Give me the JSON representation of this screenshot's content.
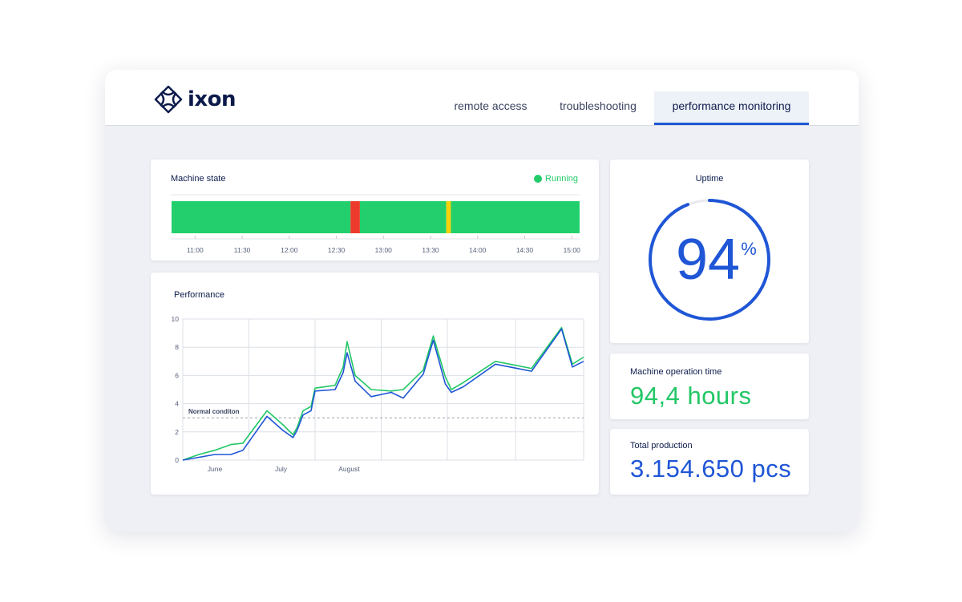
{
  "brand": {
    "name": "ixon"
  },
  "tabs": [
    {
      "label": "remote access",
      "active": false
    },
    {
      "label": "troubleshooting",
      "active": false
    },
    {
      "label": "performance monitoring",
      "active": true
    }
  ],
  "machine_state": {
    "title": "Machine state",
    "status": "Running",
    "colors": {
      "running": "#22cf6c",
      "stopped": "#ee3a2c",
      "warning": "#f5d20b"
    },
    "time_labels": [
      "11:00",
      "11:30",
      "12:00",
      "12:30",
      "13:00",
      "13:30",
      "14:00",
      "14:30",
      "15:00"
    ],
    "segments": [
      {
        "state": "running",
        "from": "10:45",
        "to": "12:39"
      },
      {
        "state": "stopped",
        "from": "12:39",
        "to": "12:45"
      },
      {
        "state": "running",
        "from": "12:45",
        "to": "13:40"
      },
      {
        "state": "warning",
        "from": "13:40",
        "to": "13:43"
      },
      {
        "state": "running",
        "from": "13:43",
        "to": "15:05"
      }
    ]
  },
  "performance": {
    "title": "Performance",
    "reference_label": "Normal conditon"
  },
  "uptime": {
    "title": "Uptime",
    "value": "94",
    "unit": "%",
    "fraction": 0.94
  },
  "operation_time": {
    "title": "Machine operation time",
    "value": "94,4 hours"
  },
  "total_production": {
    "title": "Total production",
    "value": "3.154.650 pcs"
  },
  "chart_data": {
    "type": "line",
    "title": "Performance",
    "ylim": [
      0,
      10
    ],
    "yticks": [
      "0",
      "2",
      "4",
      "6",
      "8",
      "10"
    ],
    "x_ticks": [
      "June",
      "July",
      "August"
    ],
    "x_tick_positions": [
      0.08,
      0.245,
      0.415
    ],
    "grid": true,
    "reference_line": {
      "label": "Normal conditon",
      "value": 3
    },
    "x": [
      0,
      0.04,
      0.08,
      0.12,
      0.15,
      0.21,
      0.25,
      0.275,
      0.285,
      0.3,
      0.32,
      0.33,
      0.38,
      0.4,
      0.41,
      0.43,
      0.47,
      0.52,
      0.55,
      0.6,
      0.625,
      0.655,
      0.67,
      0.7,
      0.78,
      0.87,
      0.945,
      0.972,
      1.0
    ],
    "series": [
      {
        "name": "",
        "color": "#22c766",
        "values": [
          0,
          0.4,
          0.7,
          1.1,
          1.2,
          3.5,
          2.5,
          1.8,
          2.3,
          3.5,
          3.8,
          5.1,
          5.3,
          6.6,
          8.4,
          6.0,
          5.0,
          4.9,
          5.0,
          6.4,
          8.8,
          5.9,
          5.0,
          5.5,
          7.0,
          6.5,
          9.4,
          6.8,
          7.3
        ]
      },
      {
        "name": "",
        "color": "#1f56d6",
        "values": [
          0,
          0.2,
          0.4,
          0.4,
          0.7,
          3.1,
          2.1,
          1.6,
          2.1,
          3.2,
          3.5,
          4.9,
          5.0,
          6.2,
          7.6,
          5.6,
          4.5,
          4.8,
          4.4,
          6.1,
          8.5,
          5.4,
          4.8,
          5.2,
          6.8,
          6.3,
          9.3,
          6.6,
          7.0
        ]
      }
    ]
  }
}
